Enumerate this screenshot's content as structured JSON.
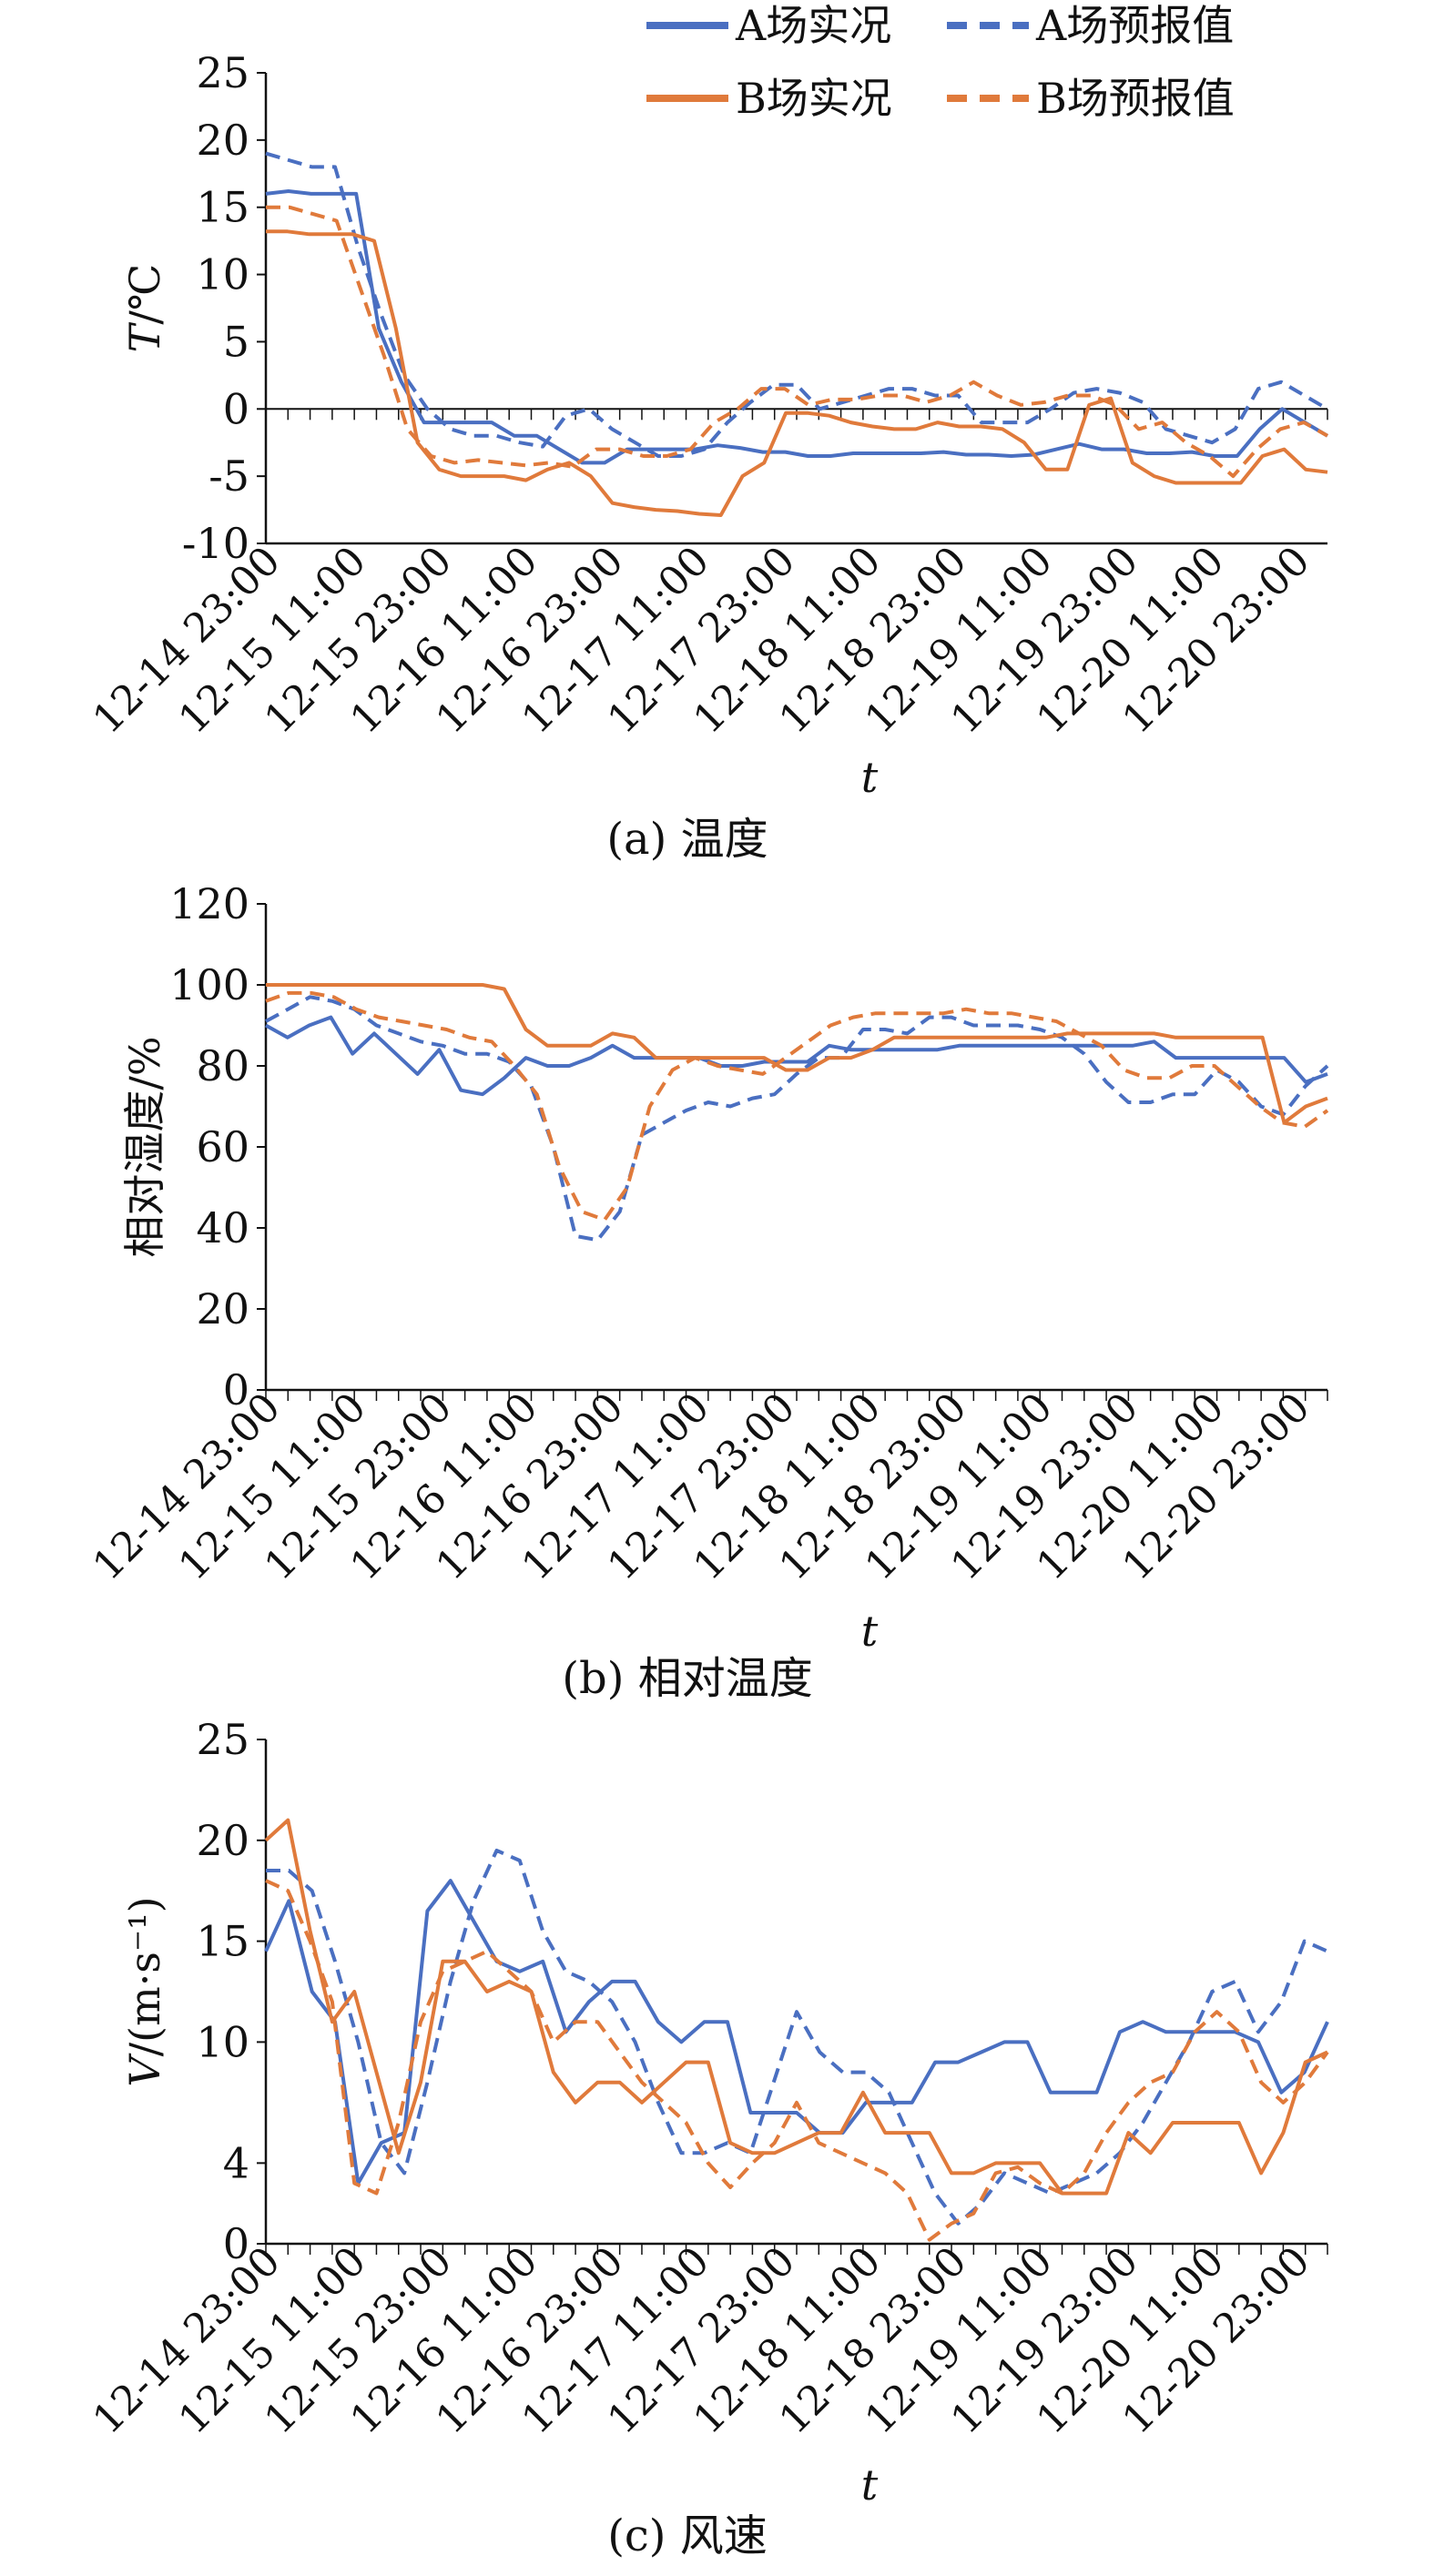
{
  "legend": {
    "entries": [
      {
        "label": "A场实况",
        "color": "#4a6fc1",
        "dash": false
      },
      {
        "label": "A场预报值",
        "color": "#4a6fc1",
        "dash": true
      },
      {
        "label": "B场实况",
        "color": "#e07a3b",
        "dash": false
      },
      {
        "label": "B场预报值",
        "color": "#e07a3b",
        "dash": true
      }
    ]
  },
  "chart_data": [
    {
      "type": "line",
      "caption": "(a) 温度",
      "ylabel_italic": "T",
      "ylabel_rest": "/℃",
      "xlabel": "t",
      "ylim": [
        -10,
        25
      ],
      "yticks": [
        -10,
        -5,
        0,
        5,
        10,
        15,
        20,
        25
      ],
      "zero_line": true,
      "xticks": [
        "12-14 23:00",
        "12-15 11:00",
        "12-15 23:00",
        "12-16 11:00",
        "12-16 23:00",
        "12-17 11:00",
        "12-17 23:00",
        "12-18 11:00",
        "12-18 23:00",
        "12-19 11:00",
        "12-19 23:00",
        "12-20 11:00",
        "12-20 23:00"
      ],
      "series": [
        {
          "name": "A场实况",
          "values": [
            16,
            16.2,
            16,
            16,
            16,
            6,
            2,
            -1,
            -1,
            -1,
            -1,
            -2,
            -2,
            -3,
            -4,
            -4,
            -3,
            -3,
            -3,
            -3,
            -2.7,
            -2.9,
            -3.2,
            -3.2,
            -3.5,
            -3.5,
            -3.3,
            -3.3,
            -3.3,
            -3.3,
            -3.2,
            -3.4,
            -3.4,
            -3.5,
            -3.4,
            -3,
            -2.6,
            -3,
            -3,
            -3.3,
            -3.3,
            -3.2,
            -3.5,
            -3.5,
            -1.5,
            0,
            -1,
            -2
          ]
        },
        {
          "name": "A场预报值",
          "values": [
            19,
            18.5,
            18,
            18,
            12,
            7,
            2.5,
            0,
            -1.5,
            -2,
            -2,
            -2.5,
            -2.8,
            -0.5,
            0,
            -1.5,
            -2.5,
            -3.5,
            -3.5,
            -3,
            -1,
            0.5,
            1.8,
            1.8,
            0,
            0.5,
            1,
            1.5,
            1.5,
            1,
            1,
            -1,
            -1,
            -1,
            0,
            1.2,
            1.5,
            1.2,
            0.5,
            -1.5,
            -2,
            -2.5,
            -1.5,
            1.5,
            2,
            1,
            0
          ]
        },
        {
          "name": "B场实况",
          "values": [
            13.2,
            13.2,
            13,
            13,
            13,
            12.5,
            6,
            -2.5,
            -4.5,
            -5,
            -5,
            -5,
            -5.3,
            -4.5,
            -4,
            -5,
            -7,
            -7.3,
            -7.5,
            -7.6,
            -7.8,
            -7.9,
            -5,
            -4,
            -0.3,
            -0.3,
            -0.5,
            -1,
            -1.3,
            -1.5,
            -1.5,
            -1,
            -1.3,
            -1.3,
            -1.5,
            -2.5,
            -4.5,
            -4.5,
            0.3,
            0.8,
            -4,
            -5,
            -5.5,
            -5.5,
            -5.5,
            -5.5,
            -3.5,
            -3,
            -4.5,
            -4.7
          ]
        },
        {
          "name": "B场预报值",
          "values": [
            15,
            15,
            14.5,
            14,
            9,
            4,
            -1.5,
            -3.5,
            -4,
            -3.8,
            -4,
            -4.2,
            -4,
            -4.3,
            -3,
            -3,
            -3.5,
            -3.5,
            -3,
            -1,
            0,
            1.5,
            1.5,
            0.3,
            0.7,
            0.7,
            1,
            1,
            0.5,
            1,
            2,
            1,
            0.3,
            0.5,
            1,
            1,
            0.3,
            -1.5,
            -1,
            -2.5,
            -3.5,
            -5,
            -3,
            -1.5,
            -1,
            -2
          ]
        }
      ]
    },
    {
      "type": "line",
      "caption": "(b) 相对温度",
      "ylabel_italic": "",
      "ylabel_rest": "相对湿度/%",
      "xlabel": "t",
      "ylim": [
        0,
        120
      ],
      "yticks": [
        0,
        20,
        40,
        60,
        80,
        100,
        120
      ],
      "zero_line": false,
      "xticks": [
        "12-14 23:00",
        "12-15 11:00",
        "12-15 23:00",
        "12-16 11:00",
        "12-16 23:00",
        "12-17 11:00",
        "12-17 23:00",
        "12-18 11:00",
        "12-18 23:00",
        "12-19 11:00",
        "12-19 23:00",
        "12-20 11:00",
        "12-20 23:00"
      ],
      "series": [
        {
          "name": "A场实况",
          "values": [
            90,
            87,
            90,
            92,
            83,
            88,
            83,
            78,
            84,
            74,
            73,
            77,
            82,
            80,
            80,
            82,
            85,
            82,
            82,
            82,
            82,
            80,
            80,
            81,
            81,
            81,
            85,
            84,
            84,
            84,
            84,
            84,
            85,
            85,
            85,
            85,
            85,
            85,
            85,
            85,
            85,
            86,
            82,
            82,
            82,
            82,
            82,
            82,
            76,
            78
          ]
        },
        {
          "name": "A场预报值",
          "values": [
            91,
            94,
            97,
            96,
            94,
            90,
            88,
            86,
            85,
            83,
            83,
            81,
            75,
            60,
            38,
            37,
            44,
            63,
            66,
            69,
            71,
            70,
            72,
            73,
            78,
            82,
            82,
            89,
            89,
            88,
            92,
            92,
            90,
            90,
            90,
            89,
            87,
            83,
            76,
            71,
            71,
            73,
            73,
            79,
            76,
            70,
            68,
            75,
            80
          ]
        },
        {
          "name": "B场实况",
          "values": [
            100,
            100,
            100,
            100,
            100,
            100,
            100,
            100,
            100,
            100,
            100,
            99,
            89,
            85,
            85,
            85,
            88,
            87,
            82,
            82,
            82,
            82,
            82,
            82,
            79,
            79,
            82,
            82,
            84,
            87,
            87,
            87,
            87,
            87,
            87,
            87,
            87,
            88,
            88,
            88,
            88,
            88,
            87,
            87,
            87,
            87,
            87,
            66,
            70,
            72
          ]
        },
        {
          "name": "B场预报值",
          "values": [
            96,
            98,
            98,
            97,
            94,
            92,
            91,
            90,
            89,
            87,
            86,
            80,
            73,
            55,
            44,
            42,
            50,
            70,
            79,
            82,
            80,
            79,
            78,
            82,
            86,
            90,
            92,
            93,
            93,
            93,
            93,
            94,
            93,
            93,
            92,
            91,
            88,
            85,
            79,
            77,
            77,
            80,
            80,
            75,
            70,
            66,
            65,
            69
          ]
        }
      ]
    },
    {
      "type": "line",
      "caption": "(c) 风速",
      "ylabel_italic": "V",
      "ylabel_rest": "/(m·s⁻¹)",
      "xlabel": "t",
      "ylim": [
        0,
        25
      ],
      "yticks": [
        0,
        4,
        10,
        15,
        20,
        25
      ],
      "zero_line": false,
      "xticks": [
        "12-14 23:00",
        "12-15 11:00",
        "12-15 23:00",
        "12-16 11:00",
        "12-16 23:00",
        "12-17 11:00",
        "12-17 23:00",
        "12-18 11:00",
        "12-18 23:00",
        "12-19 11:00",
        "12-19 23:00",
        "12-20 11:00",
        "12-20 23:00"
      ],
      "series": [
        {
          "name": "A场实况",
          "values": [
            14.5,
            17,
            12.5,
            11,
            3,
            5,
            5.5,
            16.5,
            18,
            16,
            14,
            13.5,
            14,
            10.5,
            12,
            13,
            13,
            11,
            10,
            11,
            11,
            6.5,
            6.5,
            6.5,
            5.5,
            5.5,
            7,
            7,
            7,
            9,
            9,
            9.5,
            10,
            10,
            7.5,
            7.5,
            7.5,
            10.5,
            11,
            10.5,
            10.5,
            10.5,
            10.5,
            10,
            7.5,
            8.5,
            11
          ]
        },
        {
          "name": "A场预报值",
          "values": [
            18.5,
            18.5,
            17.5,
            14,
            10,
            5,
            3.5,
            8,
            13,
            17,
            19.5,
            19,
            15.5,
            13.5,
            13,
            12,
            10,
            7,
            4.5,
            4.5,
            5,
            4.5,
            8,
            11.5,
            9.5,
            8.5,
            8.5,
            7.5,
            5,
            2.5,
            1,
            2,
            3.5,
            3,
            2.5,
            3,
            3.5,
            4.5,
            6,
            8,
            10,
            12.5,
            13,
            10.5,
            12,
            15,
            14.5
          ]
        },
        {
          "name": "B场实况",
          "values": [
            20,
            21,
            15.5,
            11,
            12.5,
            8.5,
            4.5,
            8,
            14,
            14,
            12.5,
            13,
            12.5,
            8.5,
            7,
            8,
            8,
            7,
            8,
            9,
            9,
            5,
            4.5,
            4.5,
            5,
            5.5,
            5.5,
            7.5,
            5.5,
            5.5,
            5.5,
            3.5,
            3.5,
            4,
            4,
            4,
            2.5,
            2.5,
            2.5,
            5.5,
            4.5,
            6,
            6,
            6,
            6,
            3.5,
            5.5,
            9,
            9.5
          ]
        },
        {
          "name": "B场预报值",
          "values": [
            18,
            17.5,
            15,
            12,
            3,
            2.5,
            6,
            11,
            13.5,
            14,
            14.5,
            13.5,
            12.5,
            10,
            11,
            11,
            9.5,
            8,
            7,
            6,
            4,
            2.8,
            4,
            5,
            7,
            5,
            4.5,
            4,
            3.5,
            2.5,
            0.2,
            1,
            1.5,
            3.5,
            3.8,
            3,
            2.5,
            3.5,
            5.5,
            7,
            8,
            8.5,
            10.5,
            11.5,
            10.5,
            8,
            7,
            8,
            9.5
          ]
        }
      ]
    }
  ]
}
